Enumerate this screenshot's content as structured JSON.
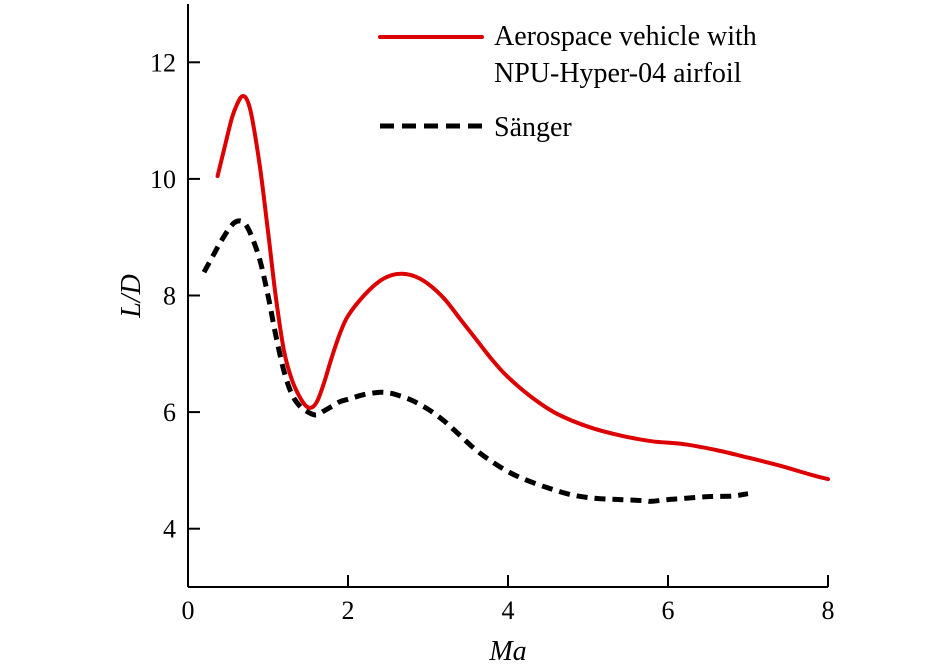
{
  "chart_data": {
    "type": "line",
    "title": "",
    "xlabel": "Ma",
    "ylabel": "L/D",
    "xlim": [
      0,
      8
    ],
    "ylim": [
      3.0,
      13.0
    ],
    "xticks": [
      0,
      2,
      4,
      6,
      8
    ],
    "yticks": [
      4,
      6,
      8,
      10,
      12
    ],
    "grid": false,
    "legend_position": "top-right",
    "series": [
      {
        "name": "Aerospace vehicle with NPU-Hyper-04 airfoil",
        "legend_lines": [
          "Aerospace vehicle with",
          "NPU-Hyper-04 airfoil"
        ],
        "color": "#dd0000",
        "style": "solid",
        "x": [
          0.37,
          0.45,
          0.55,
          0.62,
          0.68,
          0.74,
          0.8,
          0.9,
          1.0,
          1.1,
          1.2,
          1.3,
          1.4,
          1.48,
          1.55,
          1.62,
          1.7,
          1.8,
          1.9,
          2.0,
          2.2,
          2.4,
          2.55,
          2.7,
          2.85,
          3.0,
          3.2,
          3.4,
          3.6,
          3.8,
          4.0,
          4.3,
          4.6,
          5.0,
          5.4,
          5.8,
          6.2,
          6.6,
          7.0,
          7.4,
          7.8,
          8.0
        ],
        "values": [
          10.05,
          10.5,
          11.05,
          11.3,
          11.42,
          11.35,
          11.05,
          10.2,
          9.1,
          7.95,
          7.05,
          6.55,
          6.25,
          6.1,
          6.08,
          6.2,
          6.5,
          6.95,
          7.35,
          7.65,
          8.0,
          8.25,
          8.35,
          8.37,
          8.32,
          8.2,
          7.95,
          7.6,
          7.25,
          6.9,
          6.6,
          6.25,
          5.98,
          5.75,
          5.6,
          5.5,
          5.45,
          5.35,
          5.22,
          5.08,
          4.92,
          4.85
        ]
      },
      {
        "name": "Sänger",
        "legend_lines": [
          "Sänger"
        ],
        "color": "#000000",
        "style": "dashed",
        "x": [
          0.2,
          0.3,
          0.4,
          0.5,
          0.58,
          0.65,
          0.72,
          0.8,
          0.9,
          1.0,
          1.1,
          1.2,
          1.3,
          1.4,
          1.5,
          1.6,
          1.7,
          1.8,
          1.9,
          2.0,
          2.2,
          2.4,
          2.5,
          2.6,
          2.8,
          3.0,
          3.2,
          3.4,
          3.6,
          3.8,
          4.0,
          4.2,
          4.5,
          4.8,
          5.1,
          5.4,
          5.7,
          5.8,
          6.0,
          6.2,
          6.5,
          6.8,
          7.0
        ],
        "values": [
          8.4,
          8.65,
          8.9,
          9.12,
          9.25,
          9.28,
          9.22,
          9.0,
          8.6,
          8.0,
          7.3,
          6.7,
          6.3,
          6.1,
          6.0,
          5.95,
          6.02,
          6.1,
          6.18,
          6.22,
          6.3,
          6.34,
          6.33,
          6.3,
          6.2,
          6.05,
          5.85,
          5.6,
          5.35,
          5.15,
          4.98,
          4.85,
          4.7,
          4.58,
          4.52,
          4.5,
          4.48,
          4.47,
          4.5,
          4.52,
          4.55,
          4.56,
          4.6
        ]
      }
    ]
  }
}
